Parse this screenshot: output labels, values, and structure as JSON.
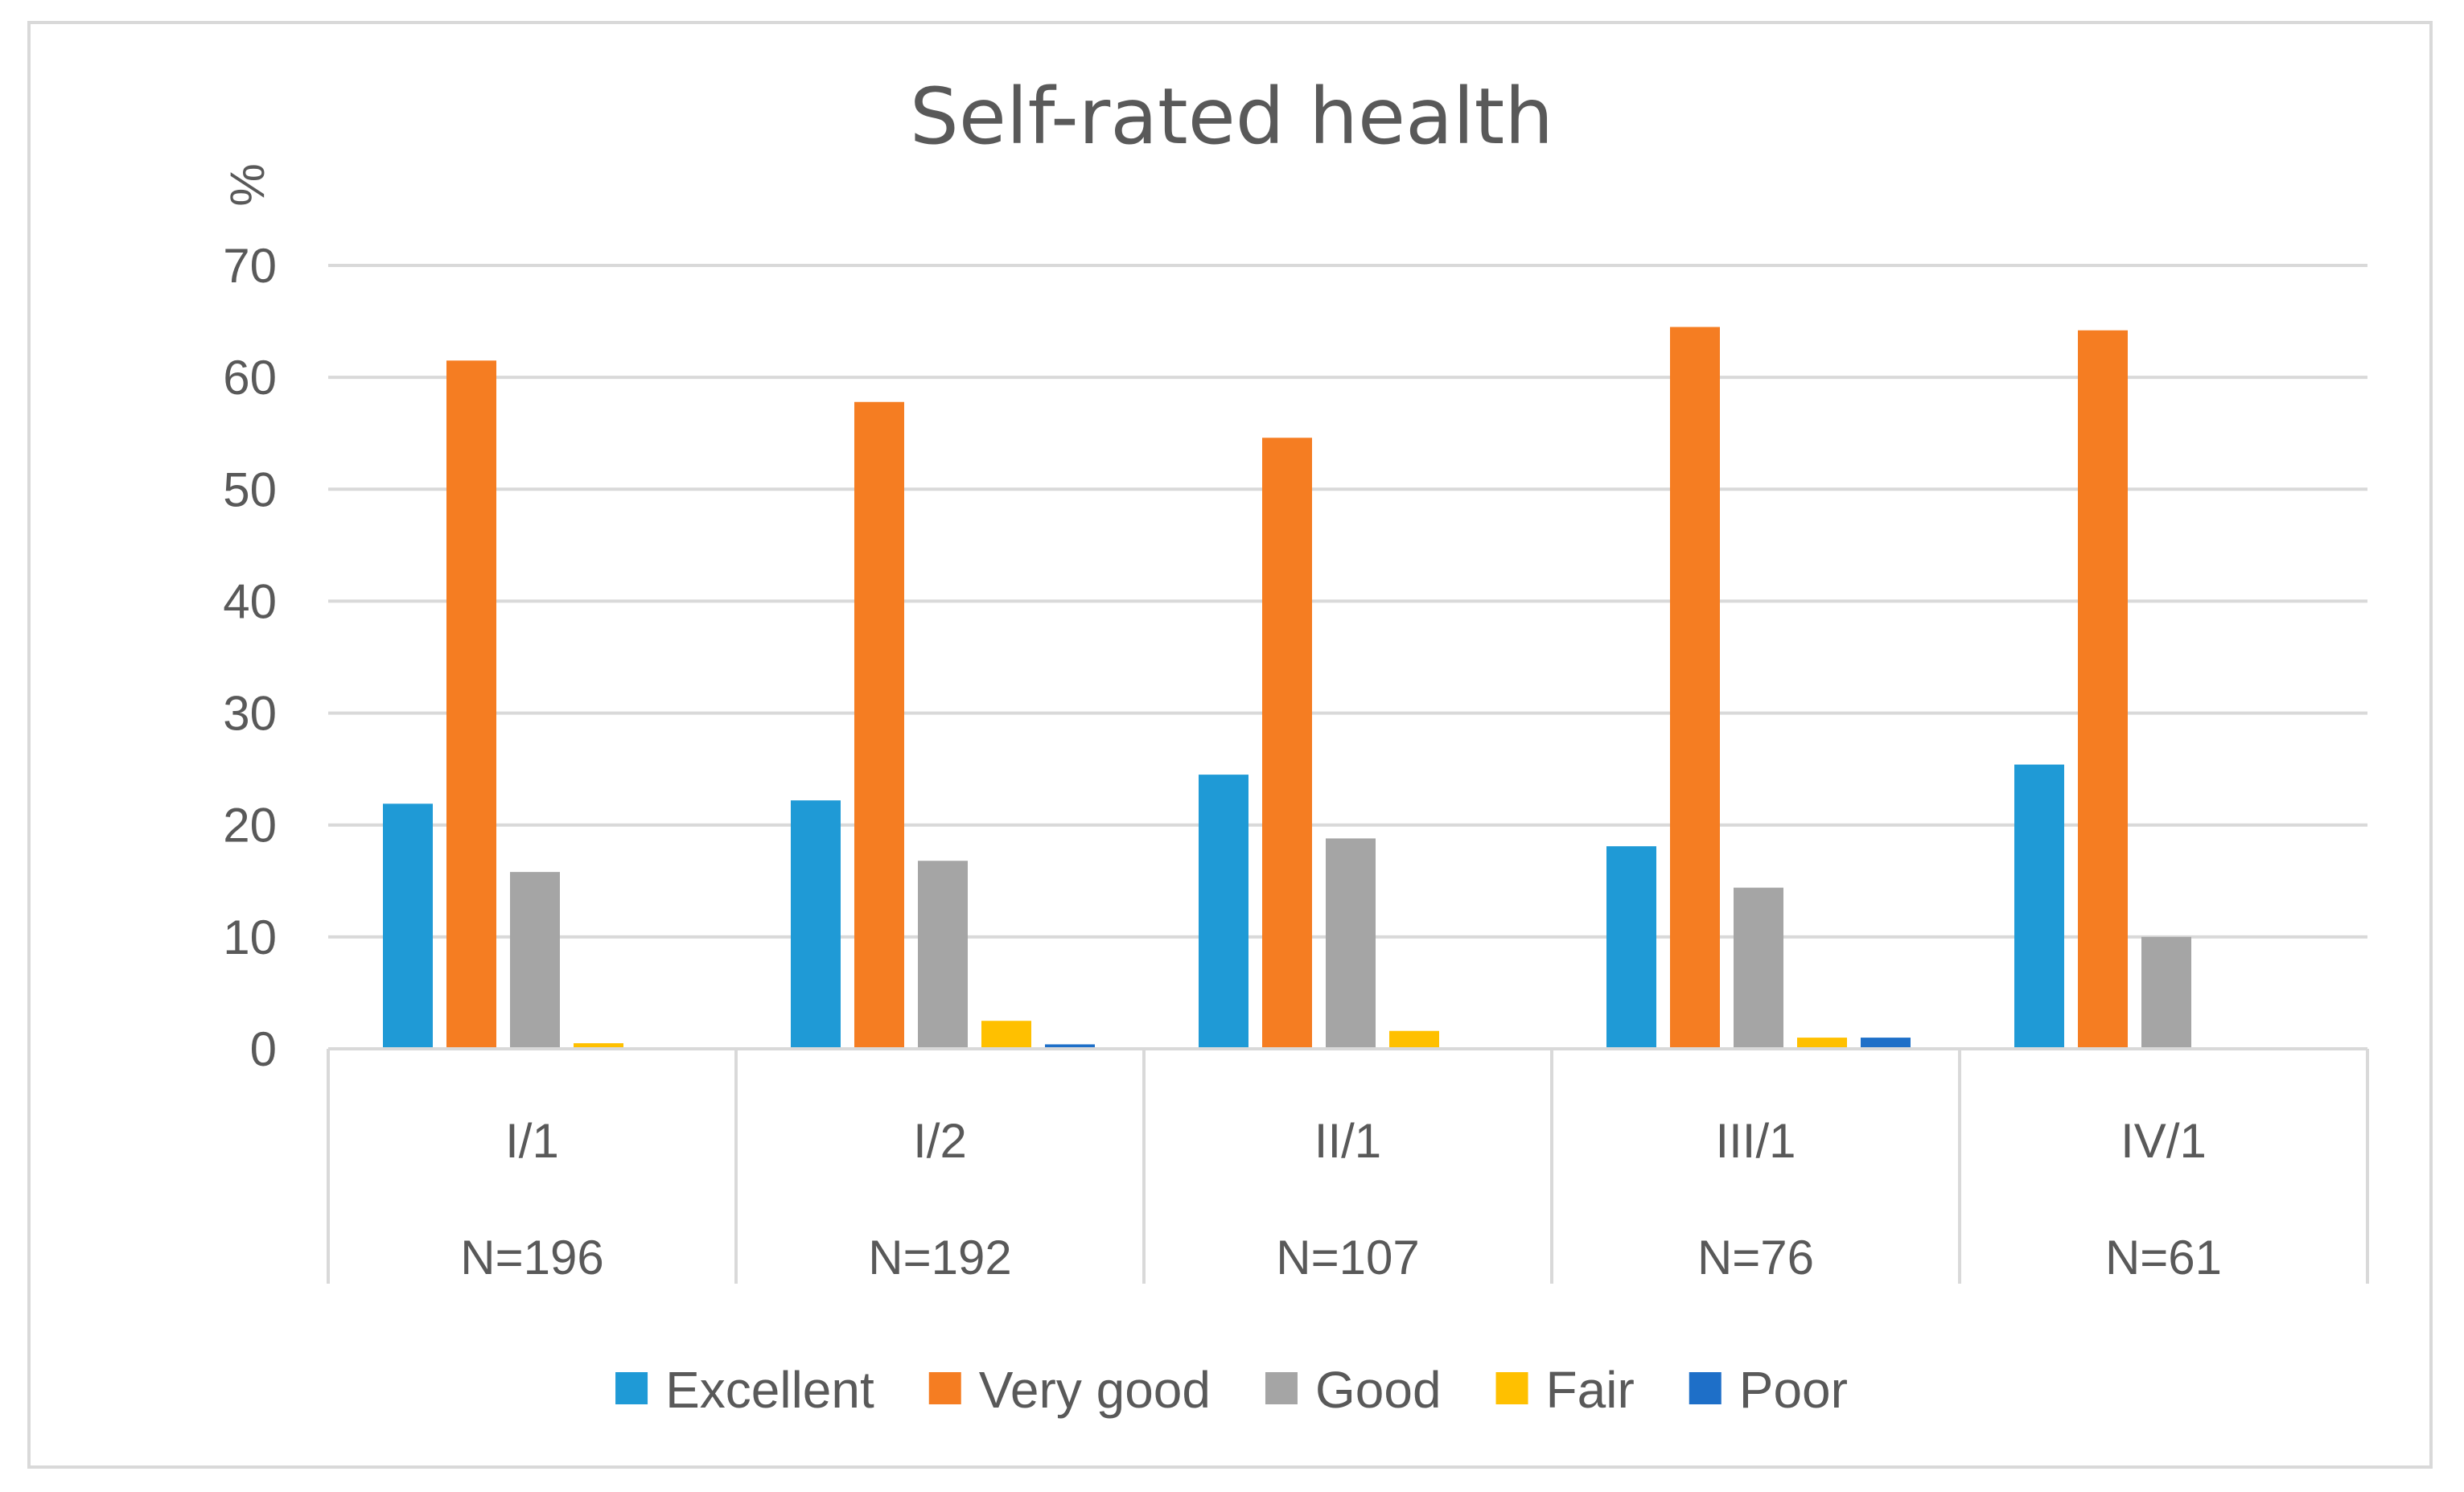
{
  "chart_data": {
    "type": "bar",
    "title": "Self-rated health",
    "ylabel": "%",
    "xlabel": "",
    "ylim": [
      0,
      70
    ],
    "yticks": [
      0,
      10,
      20,
      30,
      40,
      50,
      60,
      70
    ],
    "ytick_labels": [
      "0",
      "10",
      "20",
      "30",
      "40",
      "50",
      "60",
      "70"
    ],
    "grid": true,
    "legend_position": "bottom",
    "categories": [
      "I/1",
      "I/2",
      "II/1",
      "III/1",
      "IV/1"
    ],
    "category_sublabels": [
      "N=196",
      "N=192",
      "N=107",
      "N=76",
      "N=61"
    ],
    "series": [
      {
        "name": "Excellent",
        "color": "#1f9ad6",
        "values": [
          21.9,
          22.2,
          24.5,
          18.1,
          25.4
        ]
      },
      {
        "name": "Very good",
        "color": "#f57d22",
        "values": [
          61.5,
          57.8,
          54.6,
          64.5,
          64.2
        ]
      },
      {
        "name": "Good",
        "color": "#a5a5a5",
        "values": [
          15.8,
          16.8,
          18.8,
          14.4,
          10.0
        ]
      },
      {
        "name": "Fair",
        "color": "#ffc000",
        "values": [
          0.5,
          2.5,
          1.6,
          1.0,
          0.0
        ]
      },
      {
        "name": "Poor",
        "color": "#1e6fc8",
        "values": [
          0.0,
          0.4,
          0.0,
          1.0,
          0.0
        ]
      }
    ]
  },
  "colors": {
    "gridline": "#d9d9d9",
    "axis": "#d9d9d9",
    "text": "#595959",
    "frame": "#d9d9d9"
  }
}
